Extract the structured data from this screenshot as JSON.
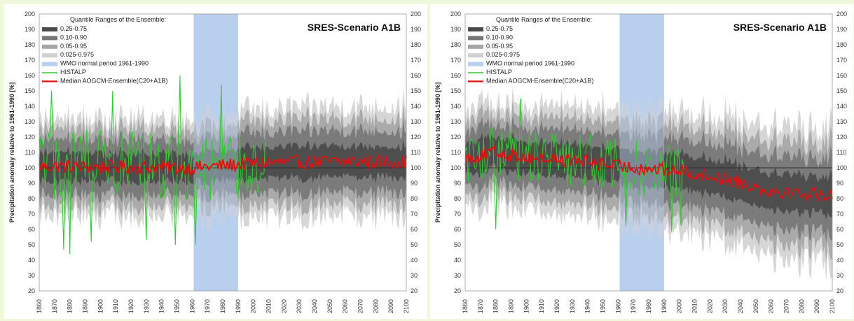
{
  "colors": {
    "background": "#f0f8dc",
    "q_25_75": "#4a4a4a",
    "q_10_90": "#777777",
    "q_05_95": "#a6a6a6",
    "q_025_975": "#d2d2d2",
    "wmo": "#b8cfee",
    "histalp": "#34c734",
    "median": "#e01010",
    "reference_line": "#2c2c2c"
  },
  "chart_data": [
    {
      "type": "area",
      "scenario_label": "SRES-Scenario A1B",
      "ylabel": "Precipitation anomaly relative to 1961-1990 [%]",
      "xlim": [
        1860,
        2100
      ],
      "ylim": [
        20,
        200
      ],
      "x_ticks": [
        "1860",
        "1870",
        "1880",
        "1890",
        "1900",
        "1910",
        "1920",
        "1930",
        "1940",
        "1950",
        "1960",
        "1970",
        "1980",
        "1990",
        "2000",
        "2010",
        "2020",
        "2030",
        "2040",
        "2050",
        "2060",
        "2070",
        "2080",
        "2090",
        "2100"
      ],
      "y_ticks": [
        "20",
        "30",
        "40",
        "50",
        "60",
        "70",
        "80",
        "90",
        "100",
        "110",
        "120",
        "130",
        "140",
        "150",
        "160",
        "170",
        "180",
        "190",
        "200"
      ],
      "reference_value": 100,
      "shaded_period": [
        1961,
        1990
      ],
      "legend": {
        "title": "Quantile Ranges of the Ensemble:",
        "items": [
          "0.25-0.75",
          "0.10-0.90",
          "0.05-0.95",
          "0.025-0.975",
          "WMO normal period 1961-1990",
          "HISTALP",
          "Median AOGCM-Ensemble(C20+A1B)"
        ]
      },
      "median_trend": [
        [
          1860,
          101
        ],
        [
          1960,
          100
        ],
        [
          2000,
          103
        ],
        [
          2050,
          104
        ],
        [
          2100,
          104
        ]
      ],
      "spread": {
        "q25_75": [
          [
            1860,
            9
          ],
          [
            2100,
            10
          ]
        ],
        "q10_90": [
          [
            1860,
            17
          ],
          [
            2100,
            20
          ]
        ],
        "q05_95": [
          [
            1860,
            24
          ],
          [
            2100,
            28
          ]
        ],
        "q025_975": [
          [
            1860,
            30
          ],
          [
            2100,
            36
          ]
        ]
      },
      "histalp_range": [
        1860,
        2008
      ],
      "histalp_amplitude": 24,
      "histalp_peaks": [
        [
          1868,
          150
        ],
        [
          1876,
          47
        ],
        [
          1880,
          44
        ],
        [
          1894,
          52
        ],
        [
          1908,
          150
        ],
        [
          1930,
          53
        ],
        [
          1952,
          160
        ],
        [
          1949,
          50
        ],
        [
          1962,
          50
        ],
        [
          1979,
          154
        ]
      ]
    },
    {
      "type": "area",
      "scenario_label": "SRES-Scenario A1B",
      "ylabel": "Precipitation anomaly relative to 1961-1990 [%]",
      "xlim": [
        1860,
        2100
      ],
      "ylim": [
        20,
        200
      ],
      "x_ticks": [
        "1860",
        "1870",
        "1880",
        "1890",
        "1900",
        "1910",
        "1920",
        "1930",
        "1940",
        "1950",
        "1960",
        "1970",
        "1980",
        "1990",
        "2000",
        "2010",
        "2020",
        "2030",
        "2040",
        "2050",
        "2060",
        "2070",
        "2080",
        "2090",
        "2100"
      ],
      "y_ticks": [
        "20",
        "30",
        "40",
        "50",
        "60",
        "70",
        "80",
        "90",
        "100",
        "110",
        "120",
        "130",
        "140",
        "150",
        "160",
        "170",
        "180",
        "190",
        "200"
      ],
      "reference_value": 100,
      "shaded_period": [
        1961,
        1990
      ],
      "legend": {
        "title": "Quantile Ranges of the Ensemble:",
        "items": [
          "0.25-0.75",
          "0.10-0.90",
          "0.05-0.95",
          "0.025-0.975",
          "WMO normal period 1961-1990",
          "HISTALP",
          "Median AOGCM-Ensemble(C20+A1B)"
        ]
      },
      "median_trend": [
        [
          1860,
          106
        ],
        [
          1880,
          110
        ],
        [
          1900,
          107
        ],
        [
          1940,
          104
        ],
        [
          1960,
          101
        ],
        [
          2000,
          98
        ],
        [
          2030,
          93
        ],
        [
          2060,
          85
        ],
        [
          2100,
          82
        ]
      ],
      "spread": {
        "q25_75": [
          [
            1860,
            10
          ],
          [
            2100,
            12
          ]
        ],
        "q10_90": [
          [
            1860,
            18
          ],
          [
            2100,
            24
          ]
        ],
        "q05_95": [
          [
            1860,
            25
          ],
          [
            2100,
            34
          ]
        ],
        "q025_975": [
          [
            1860,
            32
          ],
          [
            2100,
            44
          ]
        ]
      },
      "histalp_range": [
        1860,
        2003
      ],
      "histalp_amplitude": 18,
      "histalp_peaks": [
        [
          1896,
          145
        ],
        [
          1880,
          60
        ],
        [
          1995,
          58
        ],
        [
          2001,
          63
        ],
        [
          1965,
          62
        ]
      ]
    }
  ]
}
